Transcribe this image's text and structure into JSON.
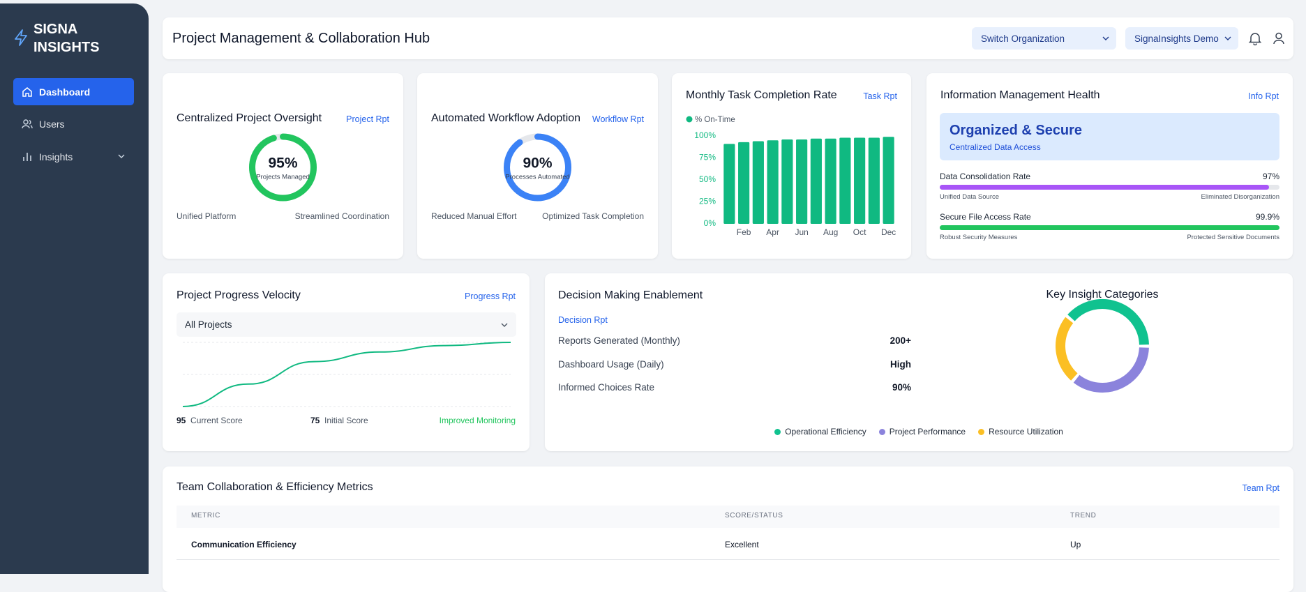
{
  "sidebar": {
    "brand": "SIGNA INSIGHTS",
    "nav": [
      "Dashboard",
      "Users",
      "Insights"
    ]
  },
  "header": {
    "title": "Project Management & Collaboration Hub",
    "org_switch": "Switch Organization",
    "account": "SignaInsights Demo"
  },
  "oversight": {
    "title": "Centralized Project Oversight",
    "link": "Project Rpt",
    "value": 95,
    "value_label": "95%",
    "lim": [
      0,
      100
    ],
    "color": "#22c55e",
    "caption": "Projects Managed",
    "footer": [
      "Unified Platform",
      "Streamlined Coordination"
    ]
  },
  "workflow": {
    "title": "Automated Workflow Adoption",
    "link": "Workflow Rpt",
    "value": 90,
    "value_label": "90%",
    "lim": [
      0,
      100
    ],
    "color": "#3b82f6",
    "caption": "Processes Automated",
    "footer": [
      "Reduced Manual Effort",
      "Optimized Task Completion"
    ]
  },
  "task_chart": {
    "type": "bar",
    "title": "Monthly Task Completion Rate",
    "link": "Task Rpt",
    "series_name": "% On-Time",
    "color": "#10b981",
    "categories": [
      null,
      "Feb",
      null,
      "Apr",
      null,
      "Jun",
      null,
      "Aug",
      null,
      "Oct",
      null,
      "Dec"
    ],
    "values": [
      91,
      93,
      94,
      95,
      96,
      96,
      97,
      97,
      98,
      98,
      98,
      99
    ],
    "ylim": [
      0,
      100
    ],
    "yticks": [
      {
        "value": 0,
        "label": "0%"
      },
      {
        "value": 25,
        "label": "25%"
      },
      {
        "value": 50,
        "label": "50%"
      },
      {
        "value": 75,
        "label": "75%"
      },
      {
        "value": 100,
        "label": "100%"
      }
    ]
  },
  "info_health": {
    "title": "Information Management Health",
    "link": "Info Rpt",
    "status": "Organized & Secure",
    "status_sub": "Centralized Data Access",
    "metrics": [
      {
        "label": "Data Consolidation Rate",
        "value": 97,
        "value_label": "97%",
        "lim": [
          0,
          100
        ],
        "color": "#a855f7",
        "left": "Unified Data Source",
        "right": "Eliminated Disorganization"
      },
      {
        "label": "Secure File Access Rate",
        "value": 99.9,
        "value_label": "99.9%",
        "lim": [
          0,
          100
        ],
        "color": "#22c55e",
        "left": "Robust Security Measures",
        "right": "Protected Sensitive Documents"
      }
    ]
  },
  "velocity": {
    "type": "line",
    "title": "Project Progress Velocity",
    "link": "Progress Rpt",
    "filter": "All Projects",
    "color": "#10b981",
    "values": [
      75,
      82,
      89,
      92,
      94,
      95
    ],
    "ylim": [
      75,
      95
    ],
    "stats": [
      {
        "value": 95,
        "label": "Current Score"
      },
      {
        "value": 75,
        "label": "Initial Score"
      }
    ],
    "status": "Improved Monitoring"
  },
  "decision": {
    "title": "Decision Making Enablement",
    "link": "Decision Rpt",
    "rows": [
      [
        "Reports Generated (Monthly)",
        "200+"
      ],
      [
        "Dashboard Usage (Daily)",
        "High"
      ],
      [
        "Informed Choices Rate",
        "90%"
      ]
    ]
  },
  "categories_chart": {
    "type": "donut",
    "title": "Key Insight Categories",
    "categories": [
      "Operational Efficiency",
      "Project Performance",
      "Resource Utilization"
    ],
    "values": [
      39,
      36,
      25
    ],
    "colors": [
      "#10c28f",
      "#8b83dc",
      "#fbbf24"
    ]
  },
  "team_table": {
    "title": "Team Collaboration & Efficiency Metrics",
    "link": "Team Rpt",
    "columns": [
      "METRIC",
      "SCORE/STATUS",
      "TREND"
    ],
    "rows": [
      [
        "Communication Efficiency",
        "Excellent",
        "Up"
      ]
    ]
  }
}
